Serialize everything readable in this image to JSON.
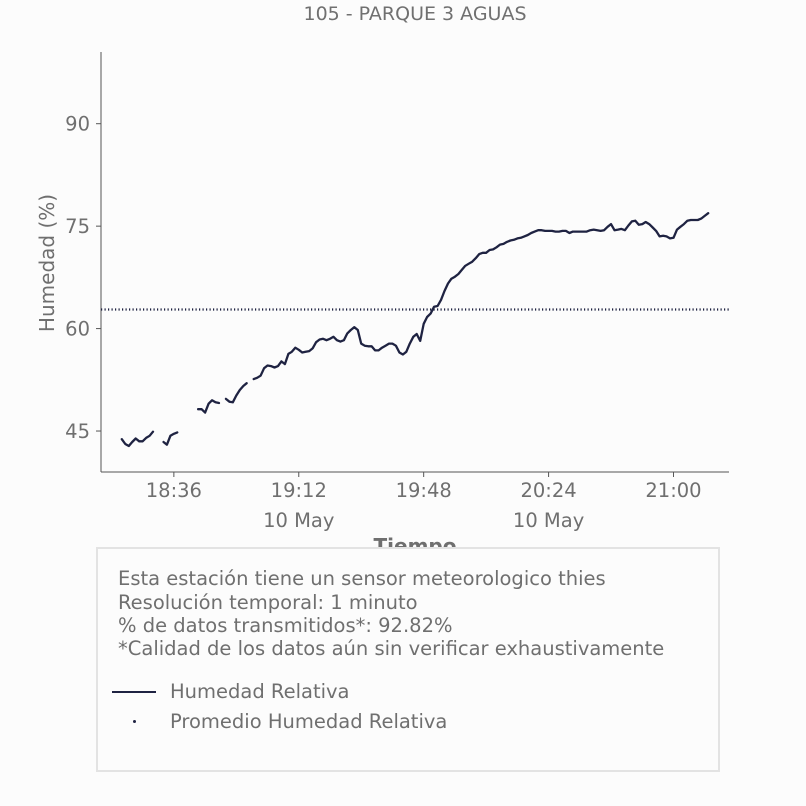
{
  "chart_data": {
    "type": "line",
    "title": "105 - PARQUE 3 AGUAS",
    "xlabel": "Tiempo",
    "ylabel": "Humedad (%)",
    "ylim": [
      39,
      100.5
    ],
    "xlim": [
      "18:15",
      "21:16"
    ],
    "x_ticks": [
      "18:36",
      "19:12",
      "19:48",
      "20:24",
      "21:00"
    ],
    "x_date_labels": [
      {
        "under": "19:12",
        "text": "10 May"
      },
      {
        "under": "20:24",
        "text": "10 May"
      }
    ],
    "y_ticks": [
      45,
      60,
      75,
      90
    ],
    "grid": false,
    "series": [
      {
        "name": "Humedad Relativa",
        "color": "#1f2342",
        "style": "solid",
        "segments": [
          [
            [
              "18:21",
              43.8
            ],
            [
              "18:22",
              43.1
            ],
            [
              "18:23",
              42.8
            ],
            [
              "18:24",
              43.4
            ],
            [
              "18:25",
              43.9
            ],
            [
              "18:26",
              43.5
            ],
            [
              "18:27",
              43.5
            ],
            [
              "18:28",
              44.0
            ],
            [
              "18:29",
              44.3
            ],
            [
              "18:30",
              44.9
            ]
          ],
          [
            [
              "18:33",
              43.4
            ],
            [
              "18:34",
              43.0
            ],
            [
              "18:35",
              44.3
            ],
            [
              "18:36",
              44.6
            ],
            [
              "18:37",
              44.8
            ]
          ],
          [
            [
              "18:43",
              48.2
            ],
            [
              "18:44",
              48.2
            ],
            [
              "18:45",
              47.7
            ],
            [
              "18:46",
              49.0
            ],
            [
              "18:47",
              49.5
            ],
            [
              "18:48",
              49.2
            ],
            [
              "18:49",
              49.1
            ]
          ],
          [
            [
              "18:51",
              49.7
            ],
            [
              "18:52",
              49.3
            ],
            [
              "18:53",
              49.2
            ],
            [
              "18:54",
              50.2
            ],
            [
              "18:55",
              51.0
            ],
            [
              "18:56",
              51.6
            ],
            [
              "18:57",
              52.0
            ]
          ],
          [
            [
              "18:59",
              52.6
            ],
            [
              "19:00",
              52.8
            ],
            [
              "19:01",
              53.1
            ],
            [
              "19:02",
              54.2
            ],
            [
              "19:03",
              54.6
            ],
            [
              "19:04",
              54.5
            ],
            [
              "19:05",
              54.3
            ],
            [
              "19:06",
              54.5
            ],
            [
              "19:07",
              55.2
            ],
            [
              "19:08",
              54.8
            ],
            [
              "19:09",
              56.3
            ],
            [
              "19:10",
              56.6
            ],
            [
              "19:11",
              57.2
            ],
            [
              "19:12",
              56.9
            ],
            [
              "19:13",
              56.5
            ],
            [
              "19:14",
              56.6
            ],
            [
              "19:15",
              56.7
            ],
            [
              "19:16",
              57.1
            ],
            [
              "19:17",
              58.0
            ],
            [
              "19:18",
              58.4
            ],
            [
              "19:19",
              58.5
            ],
            [
              "19:20",
              58.3
            ],
            [
              "19:21",
              58.5
            ],
            [
              "19:22",
              58.8
            ],
            [
              "19:23",
              58.3
            ],
            [
              "19:24",
              58.1
            ],
            [
              "19:25",
              58.3
            ],
            [
              "19:26",
              59.3
            ],
            [
              "19:27",
              59.8
            ],
            [
              "19:28",
              60.2
            ],
            [
              "19:29",
              59.8
            ],
            [
              "19:30",
              57.8
            ],
            [
              "19:31",
              57.5
            ],
            [
              "19:32",
              57.4
            ],
            [
              "19:33",
              57.4
            ],
            [
              "19:34",
              56.8
            ],
            [
              "19:35",
              56.8
            ],
            [
              "19:36",
              57.2
            ],
            [
              "19:37",
              57.5
            ],
            [
              "19:38",
              57.8
            ],
            [
              "19:39",
              57.8
            ],
            [
              "19:40",
              57.5
            ],
            [
              "19:41",
              56.5
            ],
            [
              "19:42",
              56.2
            ],
            [
              "19:43",
              56.6
            ],
            [
              "19:44",
              57.8
            ],
            [
              "19:45",
              58.8
            ],
            [
              "19:46",
              59.2
            ],
            [
              "19:47",
              58.2
            ],
            [
              "19:48",
              60.7
            ],
            [
              "19:49",
              61.7
            ],
            [
              "19:50",
              62.2
            ],
            [
              "19:51",
              63.2
            ],
            [
              "19:52",
              63.3
            ],
            [
              "19:53",
              64.2
            ],
            [
              "19:54",
              65.5
            ],
            [
              "19:55",
              66.6
            ],
            [
              "19:56",
              67.3
            ],
            [
              "19:57",
              67.6
            ],
            [
              "19:58",
              68.0
            ],
            [
              "19:59",
              68.6
            ],
            [
              "20:00",
              69.2
            ],
            [
              "20:01",
              69.5
            ],
            [
              "20:02",
              69.8
            ],
            [
              "20:03",
              70.3
            ],
            [
              "20:04",
              70.9
            ],
            [
              "20:05",
              71.1
            ],
            [
              "20:06",
              71.1
            ],
            [
              "20:07",
              71.5
            ],
            [
              "20:08",
              71.6
            ],
            [
              "20:09",
              71.9
            ],
            [
              "20:10",
              72.3
            ],
            [
              "20:11",
              72.4
            ],
            [
              "20:12",
              72.7
            ],
            [
              "20:13",
              72.9
            ],
            [
              "20:14",
              73.0
            ],
            [
              "20:15",
              73.2
            ],
            [
              "20:16",
              73.3
            ],
            [
              "20:17",
              73.5
            ],
            [
              "20:18",
              73.7
            ],
            [
              "20:19",
              74.0
            ],
            [
              "20:20",
              74.2
            ],
            [
              "20:21",
              74.4
            ],
            [
              "20:22",
              74.4
            ],
            [
              "20:23",
              74.3
            ],
            [
              "20:24",
              74.3
            ],
            [
              "20:25",
              74.3
            ],
            [
              "20:26",
              74.2
            ],
            [
              "20:27",
              74.2
            ],
            [
              "20:28",
              74.3
            ],
            [
              "20:29",
              74.3
            ],
            [
              "20:30",
              74.0
            ],
            [
              "20:31",
              74.2
            ],
            [
              "20:32",
              74.2
            ],
            [
              "20:33",
              74.2
            ],
            [
              "20:34",
              74.2
            ],
            [
              "20:35",
              74.2
            ],
            [
              "20:36",
              74.4
            ],
            [
              "20:37",
              74.5
            ],
            [
              "20:38",
              74.4
            ],
            [
              "20:39",
              74.3
            ],
            [
              "20:40",
              74.4
            ],
            [
              "20:41",
              74.9
            ],
            [
              "20:42",
              75.3
            ],
            [
              "20:43",
              74.4
            ],
            [
              "20:44",
              74.5
            ],
            [
              "20:45",
              74.6
            ],
            [
              "20:46",
              74.4
            ],
            [
              "20:47",
              75.1
            ],
            [
              "20:48",
              75.7
            ],
            [
              "20:49",
              75.8
            ],
            [
              "20:50",
              75.2
            ],
            [
              "20:51",
              75.3
            ],
            [
              "20:52",
              75.6
            ],
            [
              "20:53",
              75.3
            ],
            [
              "20:54",
              74.8
            ],
            [
              "20:55",
              74.3
            ],
            [
              "20:56",
              73.5
            ],
            [
              "20:57",
              73.6
            ],
            [
              "20:58",
              73.5
            ],
            [
              "20:59",
              73.2
            ],
            [
              "21:00",
              73.3
            ],
            [
              "21:01",
              74.5
            ],
            [
              "21:02",
              74.9
            ],
            [
              "21:03",
              75.3
            ],
            [
              "21:04",
              75.8
            ],
            [
              "21:05",
              75.9
            ],
            [
              "21:06",
              75.9
            ],
            [
              "21:07",
              75.9
            ],
            [
              "21:08",
              76.1
            ],
            [
              "21:09",
              76.5
            ],
            [
              "21:10",
              76.9
            ]
          ]
        ]
      },
      {
        "name": "Promedio Humedad Relativa",
        "color": "#1f2342",
        "style": "dotted",
        "value": 62.8
      }
    ]
  },
  "info": {
    "lines": [
      "Esta estación tiene un sensor meteorologico thies",
      "Resolución temporal: 1 minuto",
      "% de datos transmitidos*: 92.82%",
      "*Calidad de los datos aún sin verificar exhaustivamente"
    ],
    "legend": [
      {
        "label": "Humedad Relativa"
      },
      {
        "label": "Promedio Humedad Relativa"
      }
    ]
  }
}
